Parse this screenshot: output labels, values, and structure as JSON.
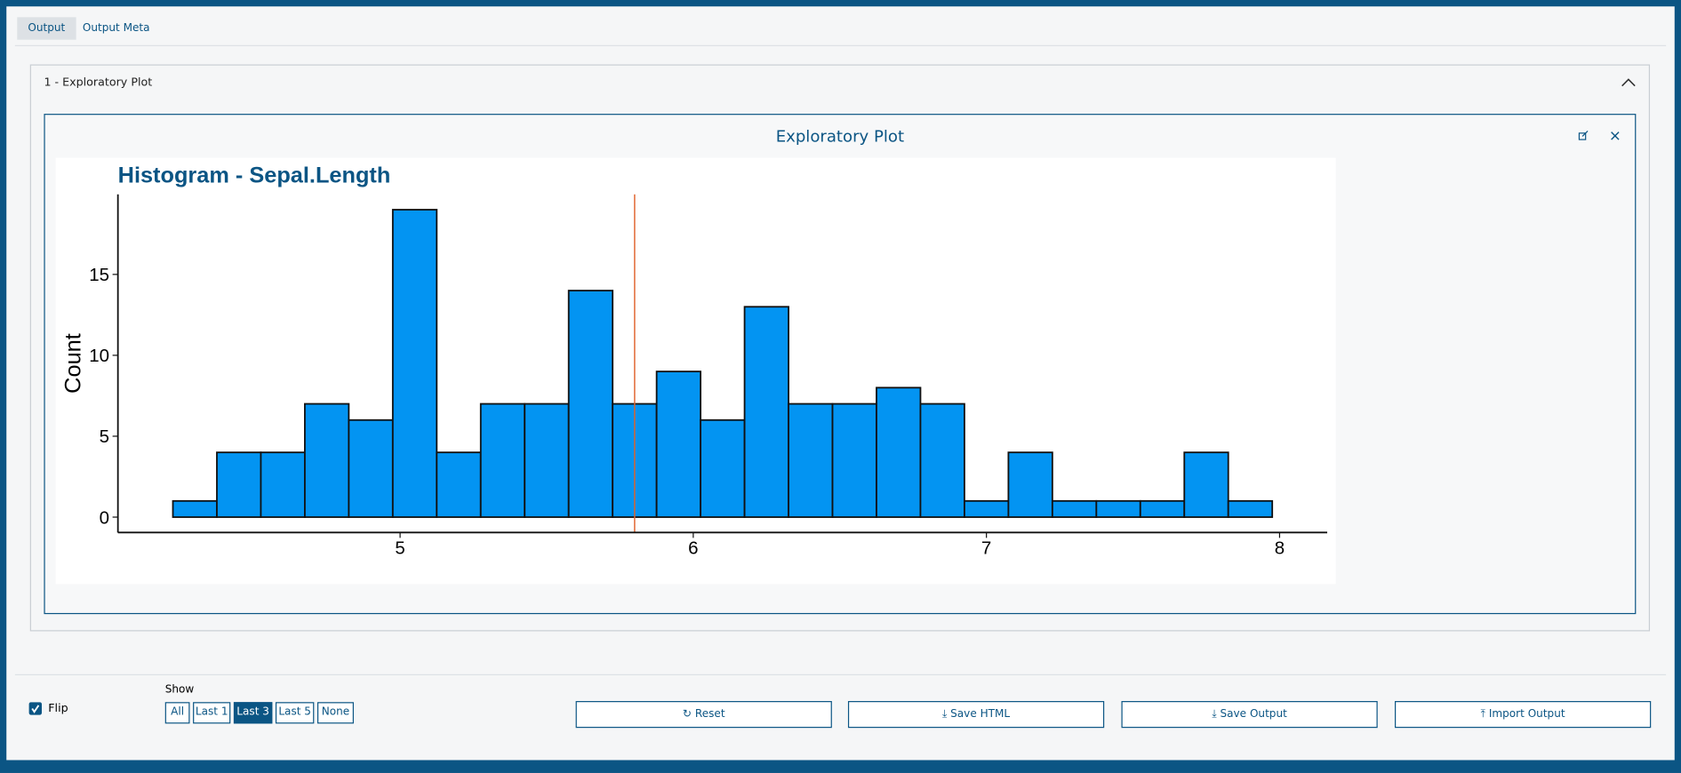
{
  "ui": {
    "tabs": [
      "Output",
      "Output Meta"
    ],
    "panel_title": "1 - Exploratory Plot",
    "card_title": "Exploratory Plot",
    "flip_label": "Flip",
    "show_label": "Show",
    "show_options": [
      "All",
      "Last 1",
      "Last 3",
      "Last 5",
      "None"
    ],
    "actions": [
      "Reset",
      "Save HTML",
      "Save Output",
      "Import Output"
    ]
  },
  "chart_data": {
    "type": "histogram",
    "title": "Histogram - Sepal.Length",
    "y_label": "Count",
    "bins": [
      4.225,
      4.375,
      4.525,
      4.675,
      4.825,
      4.975,
      5.125,
      5.275,
      5.425,
      5.575,
      5.725,
      5.875,
      6.025,
      6.175,
      6.325,
      6.475,
      6.625,
      6.775,
      6.925,
      7.075,
      7.225,
      7.375,
      7.525,
      7.675,
      7.825,
      7.975
    ],
    "values": [
      1,
      4,
      4,
      7,
      6,
      19,
      4,
      7,
      7,
      14,
      7,
      9,
      6,
      13,
      7,
      7,
      8,
      7,
      1,
      4,
      1,
      1,
      1,
      4,
      1
    ],
    "color": "#0394f2",
    "reference_line": 5.8,
    "reference_color": "#e0622c",
    "xlim": [
      4.0375,
      8.1625
    ],
    "xticks": [
      5,
      6,
      7,
      8
    ],
    "ylim": [
      -0.95,
      19.95
    ],
    "yticks": [
      0,
      5,
      10,
      15
    ]
  }
}
